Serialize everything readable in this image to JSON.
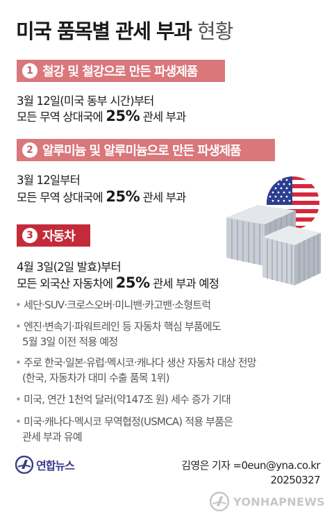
{
  "title": {
    "main": "미국 품목별 관세 부과",
    "suffix": "현황"
  },
  "sections": [
    {
      "number": "1",
      "label": "철강 및 철강으로 만든 파생제품",
      "lines": [
        {
          "text": "3월 12일(미국 동부 시간)부터"
        },
        {
          "pre": "모든 무역 상대국에 ",
          "rate": "25%",
          "post": " 관세 부과"
        }
      ]
    },
    {
      "number": "2",
      "label": "알루미늄 및 알루미늄으로 만든 파생제품",
      "lines": [
        {
          "text": "3월 12일부터"
        },
        {
          "pre": "모든 무역 상대국에 ",
          "rate": "25%",
          "post": " 관세 부과"
        }
      ]
    },
    {
      "number": "3",
      "label": "자동차",
      "lines": [
        {
          "text": "4월 3일(2일 발효)부터"
        },
        {
          "pre": "모든 외국산 자동차에 ",
          "rate": "25%",
          "post": " 관세 부과 예정"
        }
      ],
      "bullets": [
        {
          "dot": "•",
          "lines": [
            "세단·SUV·크로스오버·미니밴·카고밴·소형트럭"
          ]
        },
        {
          "dot": "•",
          "lines": [
            "엔진·변속기·파워트레인 등 자동차 핵심 부품에도",
            "5월 3일 이전 적용 예정"
          ]
        },
        {
          "dot": "•",
          "lines": [
            "주로 한국·일본·유럽·멕시코·캐나다 생산 자동차 대상 전망",
            "(한국, 자동차가 대미 수출 품목 1위)"
          ]
        },
        {
          "dot": "•",
          "lines": [
            "미국, 연간 1천억 달러(약147조 원) 세수 증가 기대"
          ]
        },
        {
          "dot": "•",
          "lines": [
            "미국·캐나다·멕시코 무역협정(USMCA) 적용 부품은",
            "관세 부과 유예"
          ]
        }
      ]
    }
  ],
  "footer": {
    "logo": "연합뉴스",
    "credit": "김영은 기자 =0eun@yna.co.kr",
    "date": "20250327",
    "watermark": "YONHAPNEWS"
  },
  "colors": {
    "bar_pink": "#d9777b",
    "bar_red": "#c42b3a",
    "flag_red": "#d7283b",
    "flag_blue": "#2c3e8f",
    "container_gray": "#c9ced6"
  },
  "icons": [
    "us-flag-icon",
    "shipping-container-icon",
    "yonhap-logo-icon"
  ]
}
